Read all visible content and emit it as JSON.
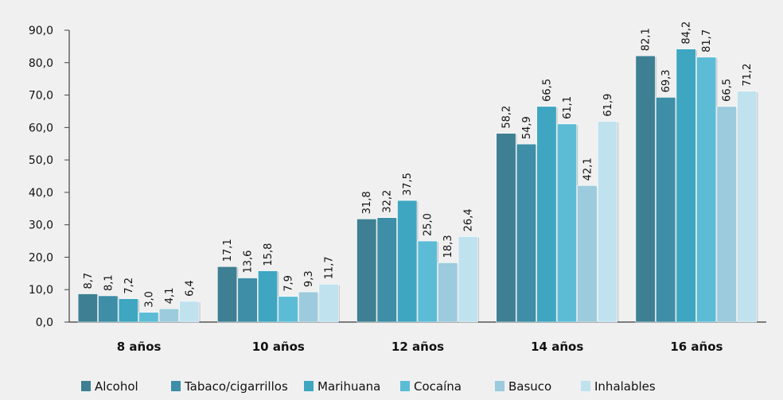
{
  "chart_data": {
    "type": "bar",
    "categories": [
      "8 años",
      "10 años",
      "12 años",
      "14 años",
      "16 años"
    ],
    "series": [
      {
        "name": "Alcohol",
        "color": "#3e7f93",
        "values": [
          8.7,
          17.1,
          31.8,
          58.2,
          82.1
        ]
      },
      {
        "name": "Tabaco/cigarrillos",
        "color": "#3d8ea6",
        "values": [
          8.1,
          13.6,
          32.2,
          54.9,
          69.3
        ]
      },
      {
        "name": "Marihuana",
        "color": "#3ea6c1",
        "values": [
          7.2,
          15.8,
          37.5,
          66.5,
          84.2
        ]
      },
      {
        "name": "Cocaína",
        "color": "#5cbcd6",
        "values": [
          3.0,
          7.9,
          25.0,
          61.1,
          81.7
        ]
      },
      {
        "name": "Basuco",
        "color": "#9bcbdc",
        "values": [
          4.1,
          9.3,
          18.3,
          42.1,
          66.5
        ]
      },
      {
        "name": "Inhalables",
        "color": "#bfe2ee",
        "values": [
          6.4,
          11.7,
          26.4,
          61.9,
          71.2
        ]
      }
    ],
    "y_ticks": [
      "0,0",
      "10,0",
      "20,0",
      "30,0",
      "40,0",
      "50,0",
      "60,0",
      "70,0",
      "80,0",
      "90,0"
    ],
    "ylim": [
      0,
      90
    ],
    "value_labels": [
      [
        "8,7",
        "17,1",
        "31,8",
        "58,2",
        "82,1"
      ],
      [
        "8,1",
        "13,6",
        "32,2",
        "54,9",
        "69,3"
      ],
      [
        "7,2",
        "15,8",
        "37,5",
        "66,5",
        "84,2"
      ],
      [
        "3,0",
        "7,9",
        "25,0",
        "61,1",
        "81,7"
      ],
      [
        "4,1",
        "9,3",
        "18,3",
        "42,1",
        "66,5"
      ],
      [
        "6,4",
        "11,7",
        "26,4",
        "61,9",
        "71,2"
      ]
    ],
    "legend_position": "bottom",
    "grid": false,
    "title": "",
    "xlabel": "",
    "ylabel": ""
  }
}
